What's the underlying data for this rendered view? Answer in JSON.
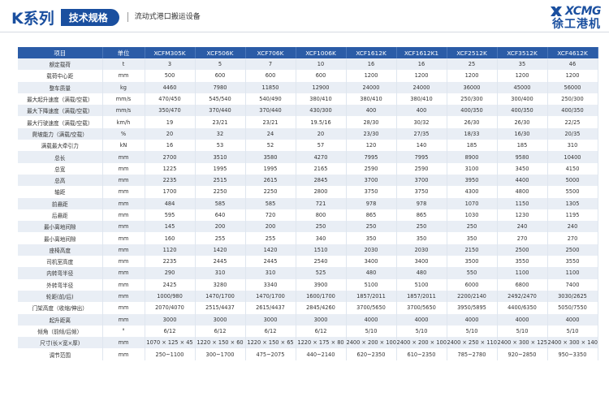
{
  "header": {
    "series_title": "K系列",
    "spec_label": "技术规格",
    "subtitle": "流动式港口搬运设备",
    "logo_en": "XCMG",
    "logo_cn": "徐工港机"
  },
  "colors": {
    "brand_blue": "#1a4f9f",
    "header_blue": "#2b5ca7",
    "row_alt": "#e9eef5"
  },
  "table": {
    "columns": [
      "项目",
      "单位",
      "XCFM305K",
      "XCF506K",
      "XCF706K",
      "XCF1006K",
      "XCF1612K",
      "XCF1612K1",
      "XCF2512K",
      "XCF3512K",
      "XCF4612K"
    ],
    "rows": [
      [
        "额定载荷",
        "t",
        "3",
        "5",
        "7",
        "10",
        "16",
        "16",
        "25",
        "35",
        "46"
      ],
      [
        "载荷中心距",
        "mm",
        "500",
        "600",
        "600",
        "600",
        "1200",
        "1200",
        "1200",
        "1200",
        "1200"
      ],
      [
        "整车质量",
        "kg",
        "4460",
        "7980",
        "11850",
        "12900",
        "24000",
        "24000",
        "36000",
        "45000",
        "56000"
      ],
      [
        "最大起升速度（满载/空载）",
        "mm/s",
        "470/450",
        "545/540",
        "540/490",
        "380/410",
        "380/410",
        "380/410",
        "250/300",
        "300/400",
        "250/300"
      ],
      [
        "最大下降速度（满载/空载）",
        "mm/s",
        "350/470",
        "370/440",
        "370/440",
        "430/300",
        "400",
        "400",
        "400/350",
        "400/350",
        "400/350"
      ],
      [
        "最大行驶速度（满载/空载）",
        "km/h",
        "19",
        "23/21",
        "23/21",
        "19.5/16",
        "28/30",
        "30/32",
        "26/30",
        "26/30",
        "22/25"
      ],
      [
        "爬坡能力（满载/空载）",
        "%",
        "20",
        "32",
        "24",
        "20",
        "23/30",
        "27/35",
        "18/33",
        "16/30",
        "20/35"
      ],
      [
        "满载最大牵引力",
        "kN",
        "16",
        "53",
        "52",
        "57",
        "120",
        "140",
        "185",
        "185",
        "310"
      ],
      [
        "总长",
        "mm",
        "2700",
        "3510",
        "3580",
        "4270",
        "7995",
        "7995",
        "8900",
        "9580",
        "10400"
      ],
      [
        "总宽",
        "mm",
        "1225",
        "1995",
        "1995",
        "2165",
        "2590",
        "2590",
        "3100",
        "3450",
        "4150"
      ],
      [
        "总高",
        "mm",
        "2235",
        "2515",
        "2615",
        "2845",
        "3700",
        "3700",
        "3950",
        "4400",
        "5000"
      ],
      [
        "轴距",
        "mm",
        "1700",
        "2250",
        "2250",
        "2800",
        "3750",
        "3750",
        "4300",
        "4800",
        "5500"
      ],
      [
        "前悬距",
        "mm",
        "484",
        "585",
        "585",
        "721",
        "978",
        "978",
        "1070",
        "1150",
        "1305"
      ],
      [
        "后悬距",
        "mm",
        "595",
        "640",
        "720",
        "800",
        "865",
        "865",
        "1030",
        "1230",
        "1195"
      ],
      [
        "最小离地间隙",
        "mm",
        "145",
        "200",
        "200",
        "250",
        "250",
        "250",
        "250",
        "240",
        "240"
      ],
      [
        "最小离地间隙",
        "mm",
        "160",
        "255",
        "255",
        "340",
        "350",
        "350",
        "350",
        "270",
        "270"
      ],
      [
        "座椅高度",
        "mm",
        "1120",
        "1420",
        "1420",
        "1510",
        "2030",
        "2030",
        "2150",
        "2500",
        "2500"
      ],
      [
        "司机室高度",
        "mm",
        "2235",
        "2445",
        "2445",
        "2540",
        "3400",
        "3400",
        "3500",
        "3550",
        "3550"
      ],
      [
        "内转弯半径",
        "mm",
        "290",
        "310",
        "310",
        "525",
        "480",
        "480",
        "550",
        "1100",
        "1100"
      ],
      [
        "外转弯半径",
        "mm",
        "2425",
        "3280",
        "3340",
        "3900",
        "5100",
        "5100",
        "6000",
        "6800",
        "7400"
      ],
      [
        "轮距(前/后)",
        "mm",
        "1000/980",
        "1470/1700",
        "1470/1700",
        "1600/1700",
        "1857/2011",
        "1857/2011",
        "2200/2140",
        "2492/2470",
        "3030/2625"
      ],
      [
        "门架高度（收缩/伸出）",
        "mm",
        "2070/4070",
        "2515/4437",
        "2615/4437",
        "2845/4260",
        "3700/5650",
        "3700/5650",
        "3950/5895",
        "4400/6350",
        "5050/7550"
      ],
      [
        "起升距离",
        "mm",
        "3000",
        "3000",
        "3000",
        "3000",
        "4000",
        "4000",
        "4000",
        "4000",
        "4000"
      ],
      [
        "倾角（前倾/后倾）",
        "°",
        "6/12",
        "6/12",
        "6/12",
        "6/12",
        "5/10",
        "5/10",
        "5/10",
        "5/10",
        "5/10"
      ],
      [
        "尺寸(长×宽×厚)",
        "mm",
        "1070 × 125 × 45",
        "1220 × 150 × 60",
        "1220 × 150 × 65",
        "1220 × 175 × 80",
        "2400 × 200 × 100",
        "2400 × 200 × 100",
        "2400 × 250 × 110",
        "2400 × 300 × 125",
        "2400 × 300 × 140"
      ],
      [
        "调节范围",
        "mm",
        "250~1100",
        "300~1700",
        "475~2075",
        "440~2140",
        "620~2350",
        "610~2350",
        "785~2780",
        "920~2850",
        "950~3350"
      ]
    ]
  }
}
